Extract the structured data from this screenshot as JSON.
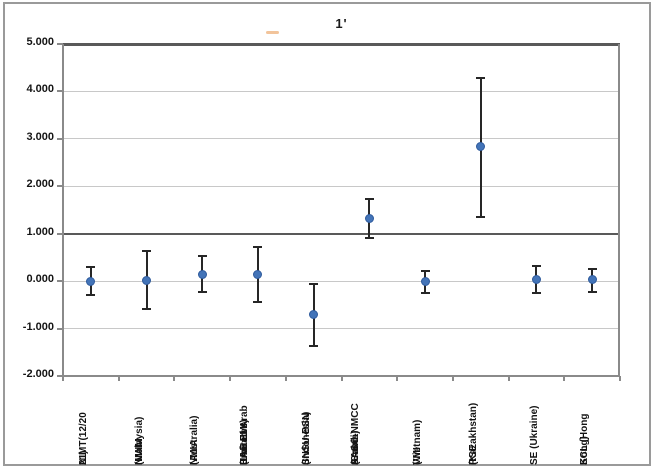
{
  "chart_data": {
    "type": "scatter",
    "title": "1'",
    "xlabel": "",
    "ylabel": "",
    "ylim": [
      -2,
      5
    ],
    "y_tick_labels": [
      "5.000",
      "4.000",
      "3.000",
      "2.000",
      "1.000",
      "0.000",
      "-1.000",
      "-2.000"
    ],
    "grid": true,
    "emphasized_gridline_values": [
      5,
      1
    ],
    "legend_position": "none",
    "marker_style": "filled-circle",
    "categories": [
      "NIMT(12/2021)",
      "NMIM (Malaysia)",
      "NMIA (Australia)",
      "UAE EMI (United Arab Emirates)",
      "SNSU-BSN (Indonesia)",
      "SASO-NMCC (Saudi Arabia)",
      "VMI (Vietnam)",
      "RSE (Kazakhstan)",
      "SE (Ukraine)",
      "SCL (Hong Kong)"
    ],
    "points": [
      {
        "label_lines": [
          "NIMT(12/20",
          "21)"
        ],
        "value": 0.0,
        "upper": 0.3,
        "lower": -0.3
      },
      {
        "label_lines": [
          "NMIM",
          "(Malaysia)"
        ],
        "value": 0.02,
        "upper": 0.63,
        "lower": -0.58
      },
      {
        "label_lines": [
          "NMIA",
          "(Australia)"
        ],
        "value": 0.15,
        "upper": 0.53,
        "lower": -0.22
      },
      {
        "label_lines": [
          "UAE EMI",
          "(United Arab",
          "Emirates)"
        ],
        "value": 0.14,
        "upper": 0.72,
        "lower": -0.45
      },
      {
        "label_lines": [
          "SNSU-BSN",
          "(Indonesia)"
        ],
        "value": -0.7,
        "upper": -0.05,
        "lower": -1.36
      },
      {
        "label_lines": [
          "SASO-NMCC",
          "(Saudi",
          "Arabia)"
        ],
        "value": 1.32,
        "upper": 1.74,
        "lower": 0.9
      },
      {
        "label_lines": [
          "VMI",
          "(Vietnam)"
        ],
        "value": -0.01,
        "upper": 0.22,
        "lower": -0.25
      },
      {
        "label_lines": [
          "RSE",
          "(Kazakhstan)"
        ],
        "value": 2.83,
        "upper": 4.29,
        "lower": 1.36
      },
      {
        "label_lines": [
          "SE (Ukraine)"
        ],
        "value": 0.04,
        "upper": 0.32,
        "lower": -0.25
      },
      {
        "label_lines": [
          "SCL (Hong",
          "Kong)"
        ],
        "value": 0.03,
        "upper": 0.26,
        "lower": -0.23
      }
    ],
    "colors": {
      "marker": "#4374b8",
      "marker_edge": "#2f5b9d",
      "error_bar": "#262626",
      "gridline": "#c8c8c8",
      "dark_line": "#595959",
      "axis": "#8a8a8a",
      "frame": "#9a9a9a",
      "text": "#141414",
      "artifact_dash": "#f2c49b"
    }
  }
}
